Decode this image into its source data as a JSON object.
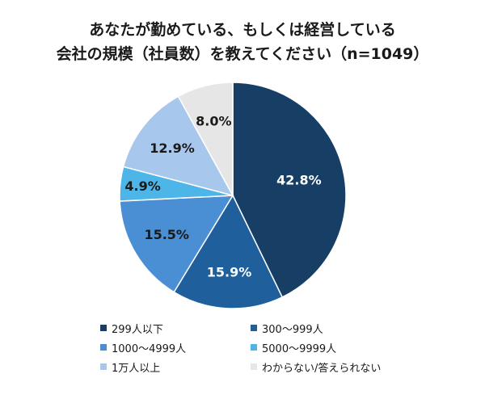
{
  "chart_data": {
    "type": "pie",
    "title_lines": [
      "あなたが勤めている、もしくは経営している",
      "会社の規模（社員数）を教えてください（n=1049）"
    ],
    "slices": [
      {
        "label": "299人以下",
        "value": 42.8,
        "value_label": "42.8%",
        "color": "#173f66",
        "text_color": "#ffffff"
      },
      {
        "label": "300〜999人",
        "value": 15.9,
        "value_label": "15.9%",
        "color": "#1f5f9c",
        "text_color": "#ffffff"
      },
      {
        "label": "1000〜4999人",
        "value": 15.5,
        "value_label": "15.5%",
        "color": "#4a8fd4",
        "text_color": "#1a1a1a"
      },
      {
        "label": "5000〜9999人",
        "value": 4.9,
        "value_label": "4.9%",
        "color": "#4db5e8",
        "text_color": "#1a1a1a"
      },
      {
        "label": "1万人以上",
        "value": 12.9,
        "value_label": "12.9%",
        "color": "#a7c8ec",
        "text_color": "#1a1a1a"
      },
      {
        "label": "わからない/答えられない",
        "value": 8.0,
        "value_label": "8.0%",
        "color": "#e6e6e6",
        "text_color": "#1a1a1a"
      }
    ],
    "legend_position": "bottom"
  }
}
